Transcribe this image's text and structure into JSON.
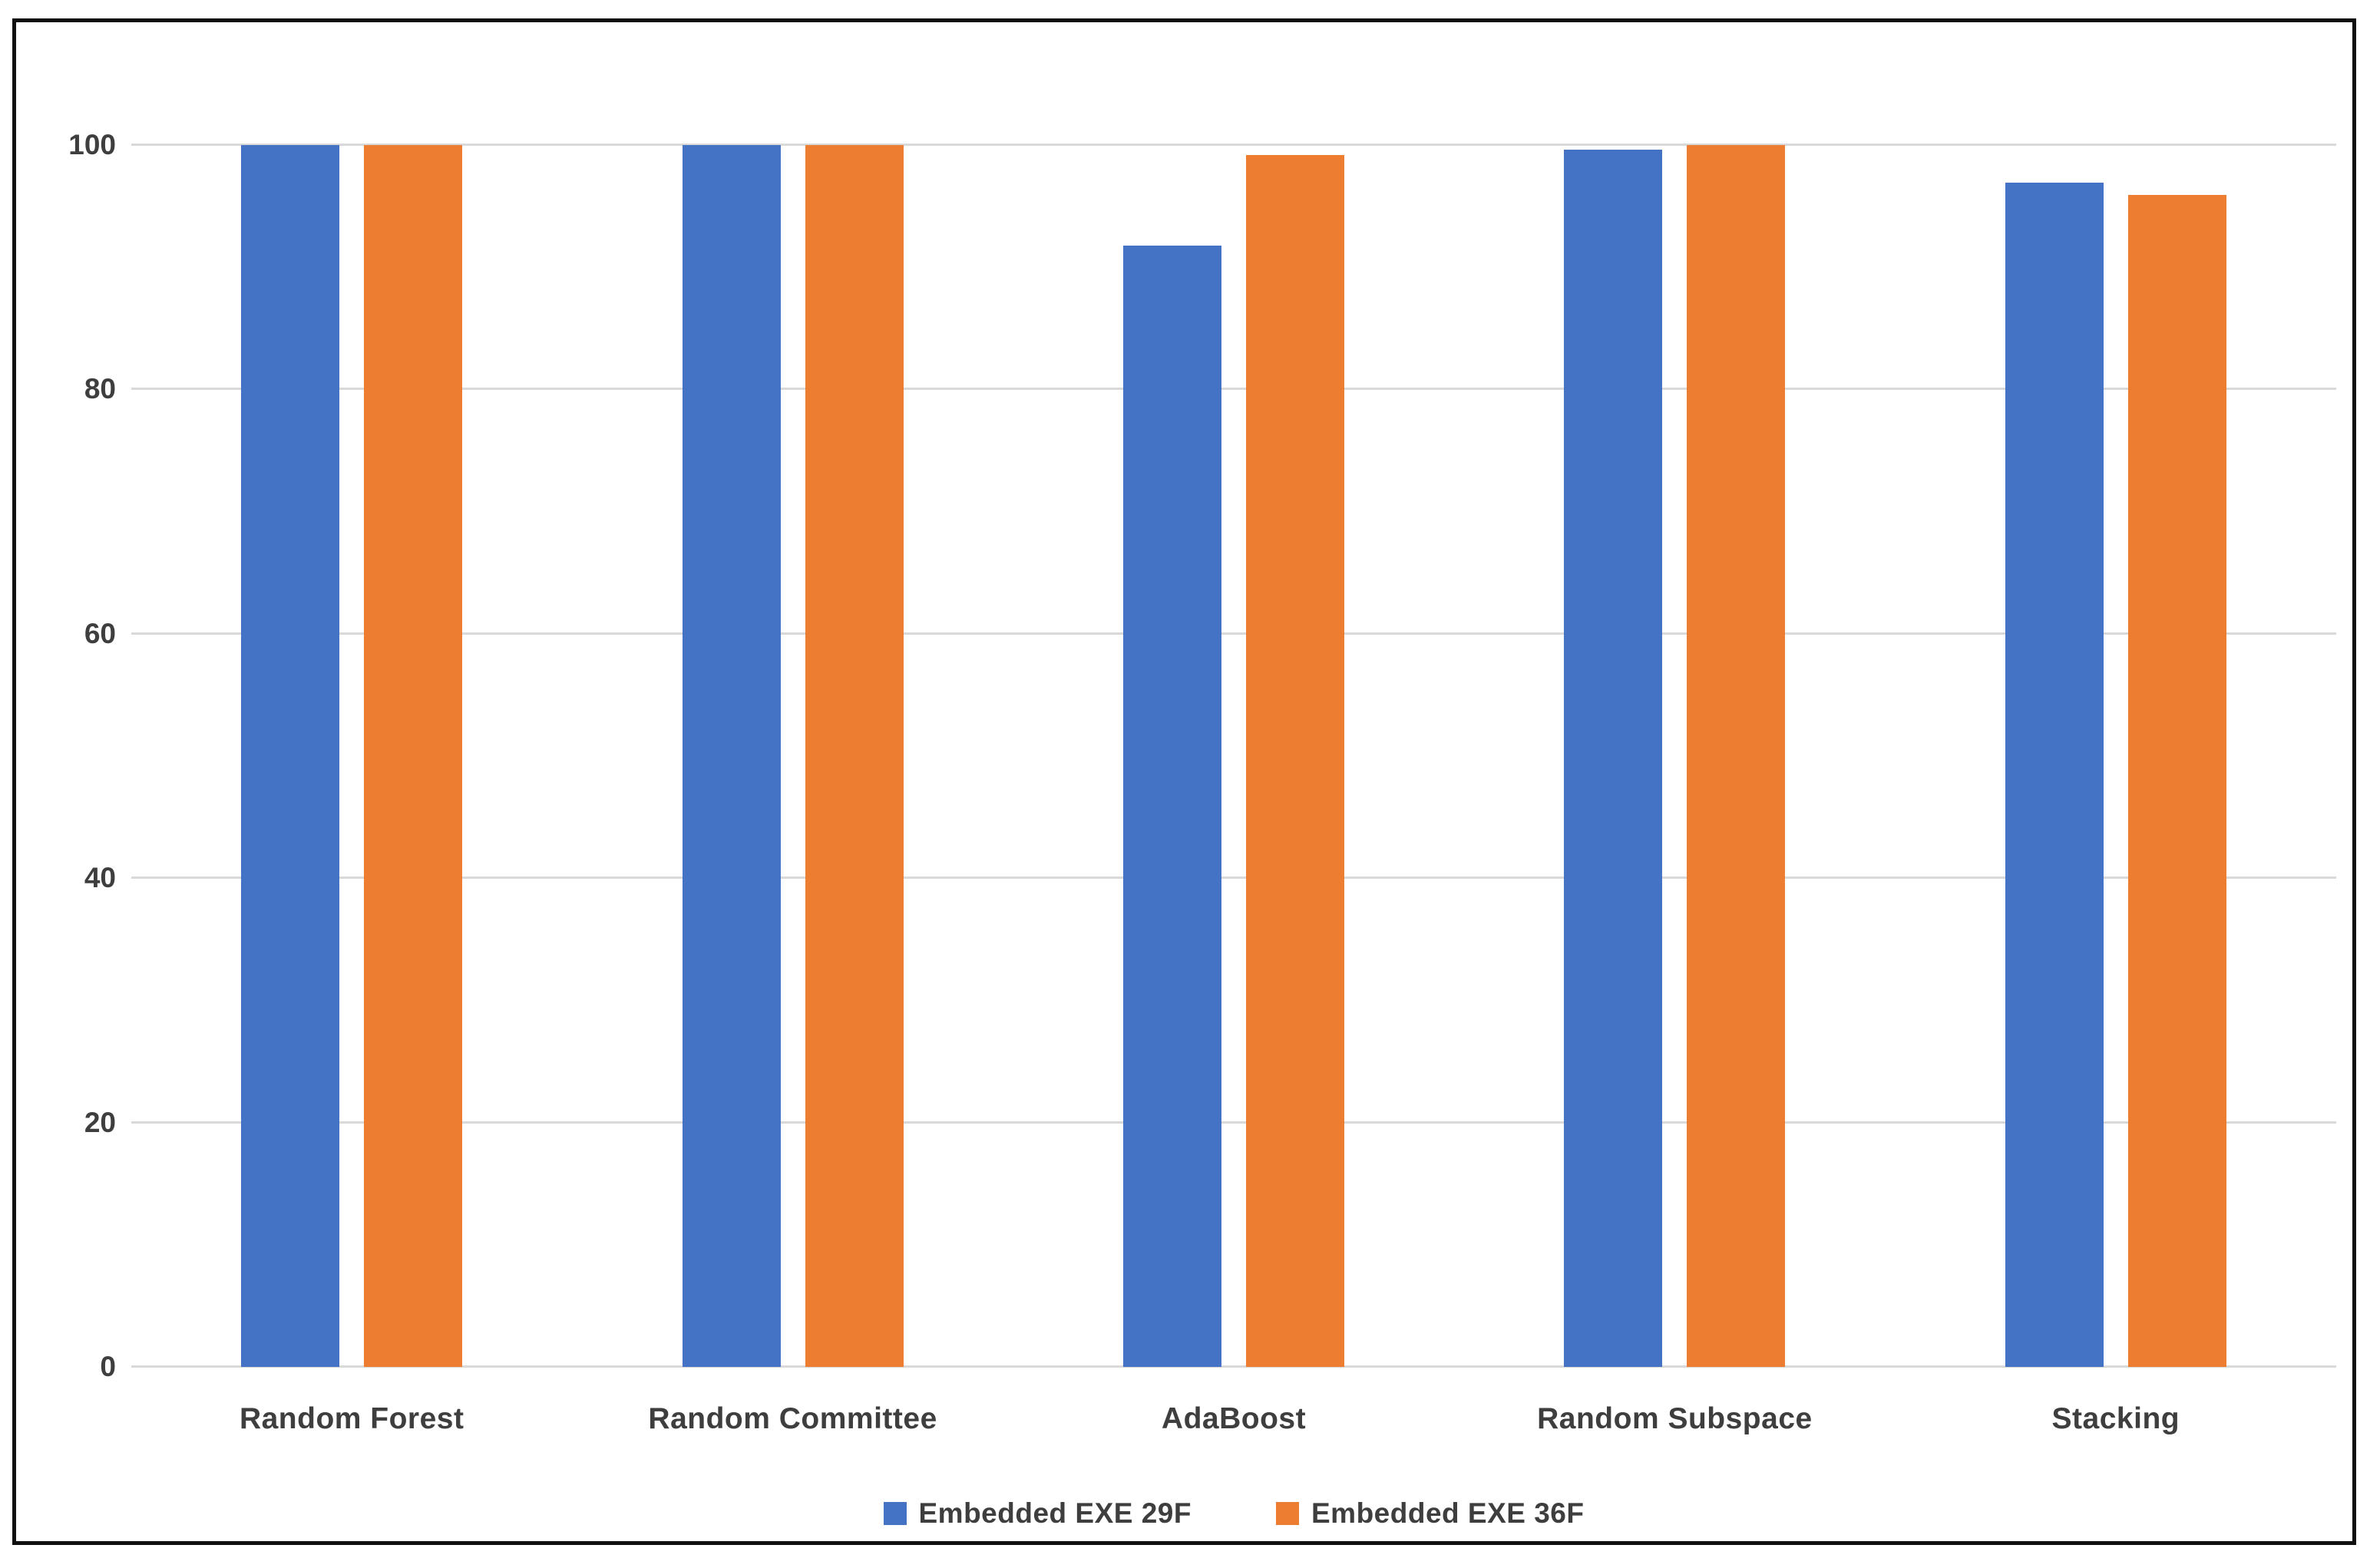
{
  "chart_data": {
    "type": "bar",
    "categories": [
      "Random Forest",
      "Random Committee",
      "AdaBoost",
      "Random Subspace",
      "Stacking"
    ],
    "series": [
      {
        "name": "Embedded EXE 29F",
        "color": "#4472C4",
        "values": [
          100,
          100,
          91.8,
          99.6,
          96.9
        ]
      },
      {
        "name": "Embedded EXE 36F",
        "color": "#ED7D31",
        "values": [
          100,
          100,
          99.2,
          100,
          95.9
        ]
      }
    ],
    "title": "",
    "xlabel": "",
    "ylabel": "",
    "ylim": [
      0,
      100
    ],
    "yticks": [
      0,
      20,
      40,
      60,
      80,
      100
    ],
    "grid": true,
    "legend_position": "bottom"
  },
  "colors": {
    "grid": "#d9d9d9",
    "axis_text": "#3e3e3e",
    "frame_border": "#101010",
    "background": "#ffffff"
  }
}
